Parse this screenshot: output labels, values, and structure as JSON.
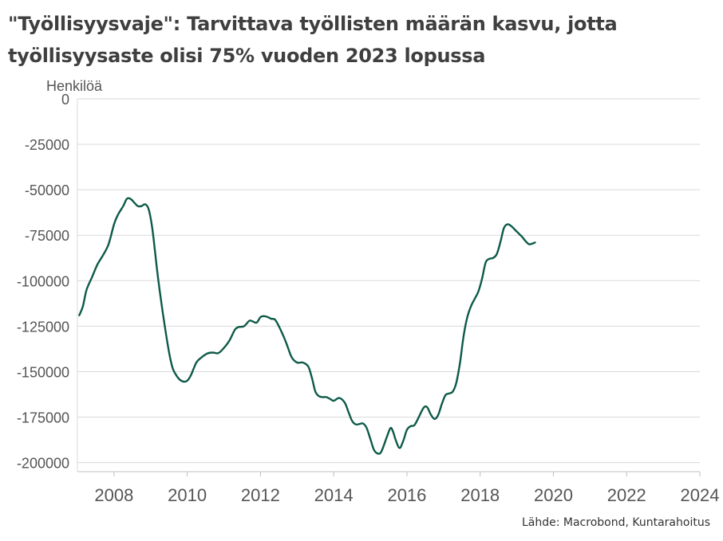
{
  "title_lines": [
    "\"Työllisyysvaje\": Tarvittava työllisten määrän kasvu, jotta",
    "työllisyysaste olisi 75% vuoden 2023 lopussa"
  ],
  "source": "Lähde: Macrobond, Kuntarahoitus",
  "colors": {
    "line": "#0d5a48",
    "grid": "#d9d9d9",
    "axis": "#bfbfbf",
    "text": "#555555"
  },
  "chart_data": {
    "type": "line",
    "title": "\"Työllisyysvaje\": Tarvittava työllisten määrän kasvu, jotta työllisyysaste olisi 75% vuoden 2023 lopussa",
    "ylabel": "Henkilöä",
    "xlabel": "",
    "xlim": [
      2007,
      2024
    ],
    "ylim": [
      -205000,
      0
    ],
    "grid": true,
    "y_ticks": [
      0,
      -25000,
      -50000,
      -75000,
      -100000,
      -125000,
      -150000,
      -175000,
      -200000
    ],
    "y_tick_labels": [
      "0",
      "-25000",
      "-50000",
      "-75000",
      "-100000",
      "-125000",
      "-150000",
      "-175000",
      "-200000"
    ],
    "x_ticks": [
      2008,
      2010,
      2012,
      2014,
      2016,
      2018,
      2020,
      2022,
      2024
    ],
    "x_tick_labels": [
      "2008",
      "2010",
      "2012",
      "2014",
      "2016",
      "2018",
      "2020",
      "2022",
      "2024"
    ],
    "series": [
      {
        "x": [
          2007.05,
          2007.15,
          2007.25,
          2007.4,
          2007.55,
          2007.7,
          2007.85,
          2008.0,
          2008.1,
          2008.25,
          2008.35,
          2008.45,
          2008.55,
          2008.65,
          2008.75,
          2008.85,
          2008.95,
          2009.05,
          2009.2,
          2009.35,
          2009.5,
          2009.6,
          2009.7,
          2009.8,
          2009.9,
          2010.0,
          2010.1,
          2010.25,
          2010.4,
          2010.55,
          2010.7,
          2010.85,
          2011.0,
          2011.15,
          2011.3,
          2011.4,
          2011.55,
          2011.7,
          2011.8,
          2011.9,
          2012.0,
          2012.1,
          2012.2,
          2012.3,
          2012.4,
          2012.55,
          2012.7,
          2012.85,
          2013.0,
          2013.15,
          2013.3,
          2013.4,
          2013.5,
          2013.6,
          2013.7,
          2013.8,
          2013.9,
          2014.0,
          2014.15,
          2014.3,
          2014.4,
          2014.5,
          2014.6,
          2014.7,
          2014.8,
          2014.9,
          2015.0,
          2015.1,
          2015.2,
          2015.3,
          2015.45,
          2015.55,
          2015.62,
          2015.7,
          2015.8,
          2015.9,
          2016.0,
          2016.1,
          2016.2,
          2016.3,
          2016.45,
          2016.55,
          2016.65,
          2016.75,
          2016.85,
          2016.95,
          2017.05,
          2017.15,
          2017.25,
          2017.35,
          2017.45,
          2017.55,
          2017.65,
          2017.75,
          2017.85,
          2017.95,
          2018.05,
          2018.15,
          2018.25,
          2018.35,
          2018.45,
          2018.55,
          2018.65,
          2018.75,
          2018.85,
          2018.95,
          2019.05,
          2019.15,
          2019.25,
          2019.35,
          2019.5
        ],
        "values": [
          -119000,
          -114000,
          -105000,
          -98000,
          -91000,
          -86000,
          -80000,
          -69000,
          -64000,
          -59000,
          -55000,
          -55000,
          -57000,
          -59000,
          -59000,
          -58000,
          -61000,
          -72000,
          -98000,
          -120000,
          -139000,
          -148000,
          -152000,
          -154500,
          -155500,
          -155000,
          -152000,
          -145000,
          -142000,
          -140000,
          -139500,
          -139800,
          -137000,
          -133000,
          -127000,
          -125500,
          -125000,
          -122000,
          -122500,
          -123000,
          -120000,
          -119500,
          -120000,
          -121000,
          -121500,
          -127000,
          -134000,
          -142000,
          -145000,
          -145000,
          -147000,
          -153000,
          -161000,
          -163500,
          -164000,
          -164000,
          -165000,
          -166000,
          -164500,
          -167000,
          -172000,
          -177000,
          -179000,
          -178800,
          -178500,
          -181000,
          -187000,
          -193000,
          -195000,
          -194000,
          -186000,
          -181000,
          -183000,
          -188000,
          -192000,
          -188000,
          -182000,
          -180000,
          -179500,
          -176000,
          -170000,
          -169500,
          -173500,
          -176000,
          -174000,
          -168000,
          -163000,
          -162000,
          -161000,
          -156000,
          -145000,
          -130000,
          -120000,
          -114000,
          -110000,
          -106000,
          -99000,
          -90000,
          -88000,
          -87500,
          -85500,
          -79000,
          -71000,
          -69000,
          -70000,
          -72000,
          -74000,
          -76000,
          -78500,
          -80000,
          -79000
        ]
      }
    ]
  }
}
